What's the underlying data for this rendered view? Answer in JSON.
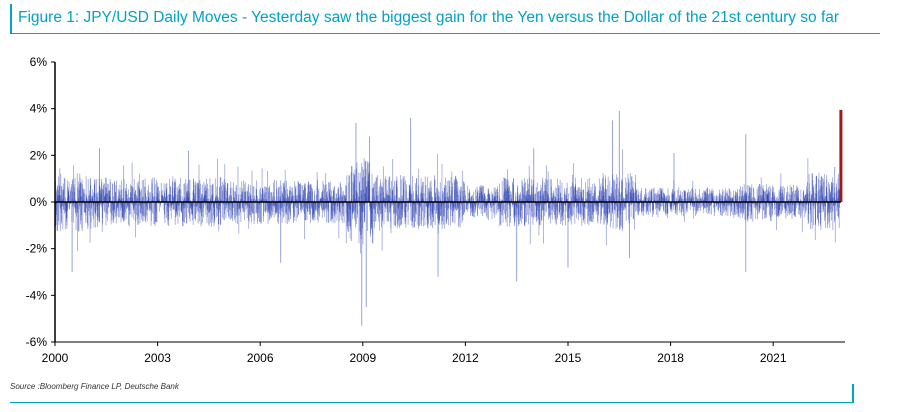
{
  "figure": {
    "title": "Figure 1: JPY/USD Daily Moves - Yesterday saw the biggest gain for the Yen versus the Dollar of the 21st century so far",
    "source": "Source :Bloomberg Finance LP, Deutsche Bank"
  },
  "colors": {
    "accent": "#00a2c7",
    "series": "#2b3fb0",
    "highlight": "#a01a1a"
  },
  "chart_data": {
    "type": "bar",
    "xlim": [
      2000,
      2023.1
    ],
    "ylim": [
      -6,
      6
    ],
    "x_ticks": [
      2000,
      2003,
      2006,
      2009,
      2012,
      2015,
      2018,
      2021
    ],
    "x_tick_labels": [
      "2000",
      "2003",
      "2006",
      "2009",
      "2012",
      "2015",
      "2018",
      "2021"
    ],
    "y_ticks": [
      -6,
      -4,
      -2,
      0,
      2,
      4,
      6
    ],
    "y_tick_labels": [
      "-6%",
      "-4%",
      "-2%",
      "0%",
      "2%",
      "4%",
      "6%"
    ],
    "units": "%",
    "grid": false,
    "series": [
      {
        "color": "#2b3fb0",
        "volatility_regimes": [
          {
            "from": 2000.0,
            "to": 2001.5,
            "typical_abs_move": 0.6
          },
          {
            "from": 2001.5,
            "to": 2005.0,
            "typical_abs_move": 0.5
          },
          {
            "from": 2005.0,
            "to": 2008.5,
            "typical_abs_move": 0.45
          },
          {
            "from": 2008.5,
            "to": 2009.3,
            "typical_abs_move": 0.9
          },
          {
            "from": 2009.3,
            "to": 2012.0,
            "typical_abs_move": 0.55
          },
          {
            "from": 2012.0,
            "to": 2013.0,
            "typical_abs_move": 0.35
          },
          {
            "from": 2013.0,
            "to": 2016.0,
            "typical_abs_move": 0.5
          },
          {
            "from": 2016.0,
            "to": 2017.0,
            "typical_abs_move": 0.6
          },
          {
            "from": 2017.0,
            "to": 2020.0,
            "typical_abs_move": 0.3
          },
          {
            "from": 2020.0,
            "to": 2021.0,
            "typical_abs_move": 0.4
          },
          {
            "from": 2021.0,
            "to": 2022.0,
            "typical_abs_move": 0.35
          },
          {
            "from": 2022.0,
            "to": 2022.95,
            "typical_abs_move": 0.6
          }
        ],
        "notable_points": [
          {
            "x": 2000.5,
            "y": -3.0
          },
          {
            "x": 2001.3,
            "y": 2.3
          },
          {
            "x": 2003.9,
            "y": 2.2
          },
          {
            "x": 2006.6,
            "y": -2.6
          },
          {
            "x": 2008.8,
            "y": 3.4
          },
          {
            "x": 2008.97,
            "y": -5.3
          },
          {
            "x": 2009.1,
            "y": -4.5
          },
          {
            "x": 2009.2,
            "y": 2.8
          },
          {
            "x": 2010.4,
            "y": 3.6
          },
          {
            "x": 2011.2,
            "y": -3.2
          },
          {
            "x": 2013.5,
            "y": -3.4
          },
          {
            "x": 2014.0,
            "y": 2.3
          },
          {
            "x": 2015.0,
            "y": -2.8
          },
          {
            "x": 2016.3,
            "y": 3.5
          },
          {
            "x": 2016.5,
            "y": 3.9
          },
          {
            "x": 2016.8,
            "y": -2.4
          },
          {
            "x": 2018.1,
            "y": 2.1
          },
          {
            "x": 2020.2,
            "y": 2.9
          },
          {
            "x": 2020.2,
            "y": -3.0
          },
          {
            "x": 2022.8,
            "y": 1.5
          }
        ]
      },
      {
        "color": "#a01a1a",
        "points": [
          {
            "x": 2022.98,
            "y": 3.95
          }
        ]
      }
    ]
  }
}
